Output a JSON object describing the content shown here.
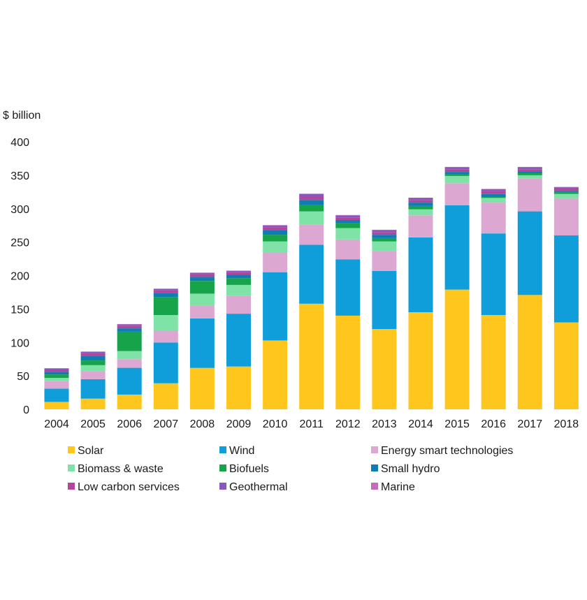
{
  "chart_data": {
    "type": "bar",
    "stacked": true,
    "ylabel": "$ billion",
    "ylim": [
      0,
      400
    ],
    "yticks": [
      0,
      50,
      100,
      150,
      200,
      250,
      300,
      350,
      400
    ],
    "grid": false,
    "legend_position": "bottom",
    "categories": [
      "2004",
      "2005",
      "2006",
      "2007",
      "2008",
      "2009",
      "2010",
      "2011",
      "2012",
      "2013",
      "2014",
      "2015",
      "2016",
      "2017",
      "2018"
    ],
    "series": [
      {
        "name": "Solar",
        "color": "#FFC61E",
        "values": [
          11,
          16,
          22,
          39,
          62,
          64,
          103,
          158,
          140,
          120,
          145,
          179,
          141,
          171,
          130
        ]
      },
      {
        "name": "Wind",
        "color": "#0F9ED9",
        "values": [
          20,
          29,
          40,
          61,
          74,
          79,
          102,
          88,
          84,
          87,
          112,
          126,
          122,
          125,
          130
        ]
      },
      {
        "name": "Energy smart technologies",
        "color": "#DCA7D1",
        "values": [
          11,
          12,
          13,
          17,
          19,
          27,
          29,
          30,
          30,
          30,
          33,
          33,
          46,
          49,
          55
        ]
      },
      {
        "name": "Biomass & waste",
        "color": "#7FE3A8",
        "values": [
          5,
          9,
          12,
          24,
          18,
          16,
          17,
          20,
          17,
          14,
          9,
          11,
          7,
          5,
          7
        ]
      },
      {
        "name": "Biofuels",
        "color": "#17A34A",
        "values": [
          5,
          7,
          29,
          27,
          19,
          10,
          10,
          10,
          7,
          5,
          5,
          3,
          2,
          3,
          3
        ]
      },
      {
        "name": "Small hydro",
        "color": "#0E7DB4",
        "values": [
          4,
          7,
          5,
          6,
          6,
          5,
          7,
          7,
          5,
          5,
          5,
          3,
          4,
          3,
          2
        ]
      },
      {
        "name": "Low carbon services",
        "color": "#B0479A",
        "values": [
          3,
          4,
          4,
          4,
          4,
          4,
          4,
          5,
          4,
          4,
          4,
          4,
          4,
          3,
          3
        ]
      },
      {
        "name": "Geothermal",
        "color": "#8A56C0",
        "values": [
          2,
          2,
          2,
          2,
          2,
          2,
          3,
          4,
          3,
          3,
          3,
          3,
          3,
          3,
          2
        ]
      },
      {
        "name": "Marine",
        "color": "#C46CB8",
        "values": [
          0.5,
          0.5,
          0.5,
          0.5,
          0.5,
          0.5,
          0.5,
          0.5,
          0.5,
          0.5,
          0.5,
          0.5,
          0.5,
          0.5,
          0.5
        ]
      }
    ]
  }
}
